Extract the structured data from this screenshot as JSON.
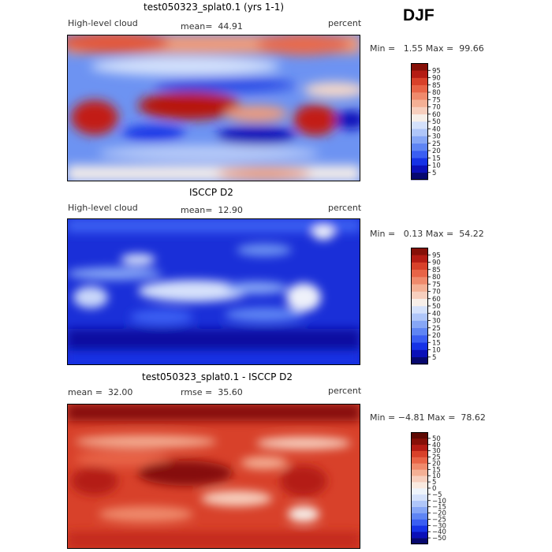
{
  "season": "DJF",
  "chart_data": [
    {
      "type": "heatmap",
      "title": "test050323_splat0.1 (yrs 1-1)",
      "variable": "High-level cloud",
      "mean_label": "mean=",
      "mean": "44.91",
      "units": "percent",
      "min_label": "Min =",
      "min": "1.55",
      "max_label": "Max =",
      "max": "99.66",
      "colorbar": {
        "levels": [
          "5",
          "10",
          "15",
          "20",
          "25",
          "30",
          "40",
          "50",
          "60",
          "70",
          "75",
          "80",
          "85",
          "90",
          "95"
        ],
        "colors": [
          "#07086f",
          "#0b10b8",
          "#1632e6",
          "#3a5ef2",
          "#5f85f4",
          "#86a6f6",
          "#afc6f9",
          "#d4e1fb",
          "#f7efe9",
          "#f7cfbe",
          "#f4b095",
          "#ef8a6c",
          "#e86447",
          "#d8412a",
          "#b41c14",
          "#861008"
        ]
      }
    },
    {
      "type": "heatmap",
      "title": "ISCCP D2",
      "variable": "High-level cloud",
      "mean_label": "mean=",
      "mean": "12.90",
      "units": "percent",
      "min_label": "Min =",
      "min": "0.13",
      "max_label": "Max =",
      "max": "54.22",
      "colorbar": {
        "levels": [
          "5",
          "10",
          "15",
          "20",
          "25",
          "30",
          "40",
          "50",
          "60",
          "70",
          "75",
          "80",
          "85",
          "90",
          "95"
        ],
        "colors": [
          "#07086f",
          "#0b10b8",
          "#1632e6",
          "#3a5ef2",
          "#5f85f4",
          "#86a6f6",
          "#afc6f9",
          "#d4e1fb",
          "#f7efe9",
          "#f7cfbe",
          "#f4b095",
          "#ef8a6c",
          "#e86447",
          "#d8412a",
          "#b41c14",
          "#861008"
        ]
      }
    },
    {
      "type": "heatmap",
      "title": "test050323_splat0.1 - ISCCP D2",
      "mean_label": "mean =",
      "mean": "32.00",
      "rmse_label": "rmse =",
      "rmse": "35.60",
      "units": "percent",
      "min_label": "Min =",
      "min": "−4.81",
      "max_label": "Max =",
      "max": "78.62",
      "colorbar": {
        "levels": [
          "−50",
          "−40",
          "−30",
          "−25",
          "−20",
          "−15",
          "−10",
          "−5",
          "0",
          "5",
          "10",
          "15",
          "20",
          "25",
          "30",
          "40",
          "50"
        ],
        "colors": [
          "#07086f",
          "#0b10b8",
          "#1632e6",
          "#3a5ef2",
          "#5f85f4",
          "#86a6f6",
          "#afc6f9",
          "#d4e1fb",
          "#eef4fb",
          "#faeae0",
          "#f7cfbe",
          "#f4b095",
          "#ef8a6c",
          "#e86447",
          "#d8412a",
          "#b41c14",
          "#861008",
          "#5e0a04"
        ]
      }
    }
  ]
}
